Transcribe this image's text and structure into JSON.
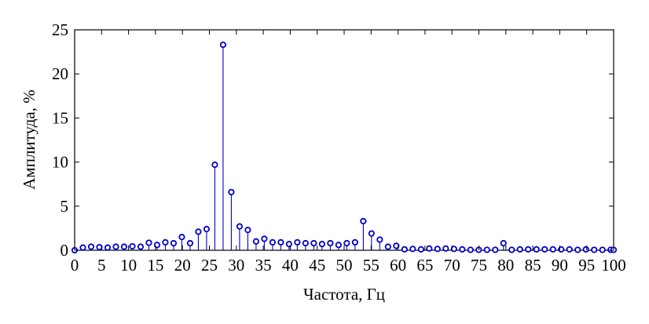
{
  "chart_data": {
    "type": "stem",
    "xlabel": "Частота, Гц",
    "ylabel": "Амплитуда, %",
    "xlim": [
      0,
      100
    ],
    "ylim": [
      0,
      25
    ],
    "xticks": [
      0,
      5,
      10,
      15,
      20,
      25,
      30,
      35,
      40,
      45,
      50,
      55,
      60,
      65,
      70,
      75,
      80,
      85,
      90,
      95,
      100
    ],
    "yticks": [
      0,
      5,
      10,
      15,
      20,
      25
    ],
    "grid": false,
    "marker_color": "#0000cc",
    "line_color": "#0000cc",
    "series": [
      {
        "x": [
          0.0,
          1.53,
          3.06,
          4.59,
          6.12,
          7.65,
          9.18,
          10.71,
          12.24,
          13.77,
          15.3,
          16.83,
          18.36,
          19.89,
          21.42,
          22.95,
          24.48,
          26.01,
          27.54,
          29.07,
          30.6,
          32.13,
          33.66,
          35.19,
          36.72,
          38.25,
          39.78,
          41.31,
          42.84,
          44.37,
          45.9,
          47.43,
          48.96,
          50.49,
          52.02,
          53.55,
          55.08,
          56.61,
          58.14,
          59.67,
          61.2,
          62.73,
          64.26,
          65.79,
          67.32,
          68.85,
          70.38,
          71.91,
          73.44,
          74.97,
          76.5,
          78.03,
          79.56,
          81.09,
          82.62,
          84.15,
          85.68,
          87.21,
          88.74,
          90.27,
          91.8,
          93.33,
          94.86,
          96.39,
          97.92,
          99.45,
          100.0
        ],
        "y": [
          0.0,
          0.3,
          0.4,
          0.35,
          0.3,
          0.4,
          0.4,
          0.45,
          0.4,
          0.85,
          0.6,
          0.9,
          0.8,
          1.5,
          0.8,
          2.1,
          2.4,
          9.7,
          23.3,
          6.6,
          2.7,
          2.3,
          1.0,
          1.3,
          0.9,
          0.9,
          0.7,
          0.9,
          0.8,
          0.8,
          0.7,
          0.8,
          0.6,
          0.8,
          0.9,
          3.3,
          1.9,
          1.2,
          0.4,
          0.5,
          0.1,
          0.15,
          0.1,
          0.2,
          0.15,
          0.2,
          0.15,
          0.1,
          0.05,
          0.05,
          0.05,
          0.05,
          0.8,
          0.05,
          0.1,
          0.1,
          0.1,
          0.1,
          0.1,
          0.1,
          0.1,
          0.05,
          0.1,
          0.05,
          0.05,
          0.05,
          0.05
        ]
      }
    ]
  }
}
